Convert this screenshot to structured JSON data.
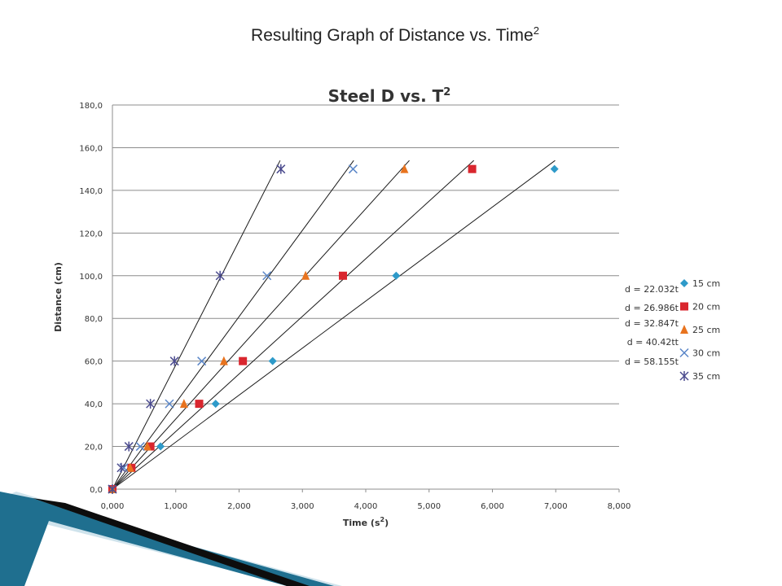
{
  "slide": {
    "title_main": "Resulting Graph of Distance vs. Time",
    "title_sup": "2"
  },
  "chart_data": {
    "type": "scatter",
    "title": "Steel D vs. T",
    "title_sup": "2",
    "xlabel_main": "Time (s",
    "xlabel_sup": "2",
    "xlabel_end": ")",
    "ylabel": "Distance (cm)",
    "xlim": [
      0,
      8
    ],
    "ylim": [
      0,
      180
    ],
    "xticks": [
      "0,000",
      "1,000",
      "2,000",
      "3,000",
      "4,000",
      "5,000",
      "6,000",
      "7,000",
      "8,000"
    ],
    "yticks": [
      "0,0",
      "20,0",
      "40,0",
      "60,0",
      "80,0",
      "100,0",
      "120,0",
      "140,0",
      "160,0",
      "180,0"
    ],
    "grid": "horizontal",
    "legend_position": "right",
    "series": [
      {
        "name": "15 cm",
        "marker": "diamond",
        "color": "#2e9ac9",
        "x": [
          0.0,
          0.76,
          1.63,
          2.53,
          4.48,
          6.98
        ],
        "y": [
          0,
          20,
          40,
          60,
          100,
          150
        ],
        "trend_slope": 22.032,
        "trend_label": "d = 22.032t"
      },
      {
        "name": "20 cm",
        "marker": "square",
        "color": "#d9262e",
        "x": [
          0.0,
          0.3,
          0.6,
          1.37,
          2.06,
          3.64,
          5.68
        ],
        "y": [
          0,
          10,
          20,
          40,
          60,
          100,
          150
        ],
        "trend_slope": 26.986,
        "trend_label": "d = 26.986t"
      },
      {
        "name": "25 cm",
        "marker": "triangle",
        "color": "#e8731e",
        "x": [
          0.0,
          0.28,
          0.55,
          1.13,
          1.76,
          3.05,
          4.61
        ],
        "y": [
          0,
          10,
          20,
          40,
          60,
          100,
          150
        ],
        "trend_slope": 32.847,
        "trend_label": "d = 32.847t"
      },
      {
        "name": "30 cm",
        "marker": "x",
        "color": "#5a86c8",
        "x": [
          0.0,
          0.18,
          0.44,
          0.9,
          1.41,
          2.44,
          3.8
        ],
        "y": [
          0,
          10,
          20,
          40,
          60,
          100,
          150
        ],
        "trend_slope": 40.42,
        "trend_label": "d = 40.42tt"
      },
      {
        "name": "35 cm",
        "marker": "star",
        "color": "#4b4b8e",
        "x": [
          0.0,
          0.14,
          0.26,
          0.6,
          0.98,
          1.7,
          2.66
        ],
        "y": [
          0,
          10,
          20,
          40,
          60,
          100,
          150
        ],
        "trend_slope": 58.155,
        "trend_label": "d = 58.155t"
      }
    ]
  },
  "colors": {
    "gridline": "#8c8c8c",
    "trendline": "#1a1a1a",
    "text": "#333333",
    "deco_dark": "#0d0d0d",
    "deco_blue": "#1f6f8f",
    "deco_light": "#cfe3ec"
  }
}
